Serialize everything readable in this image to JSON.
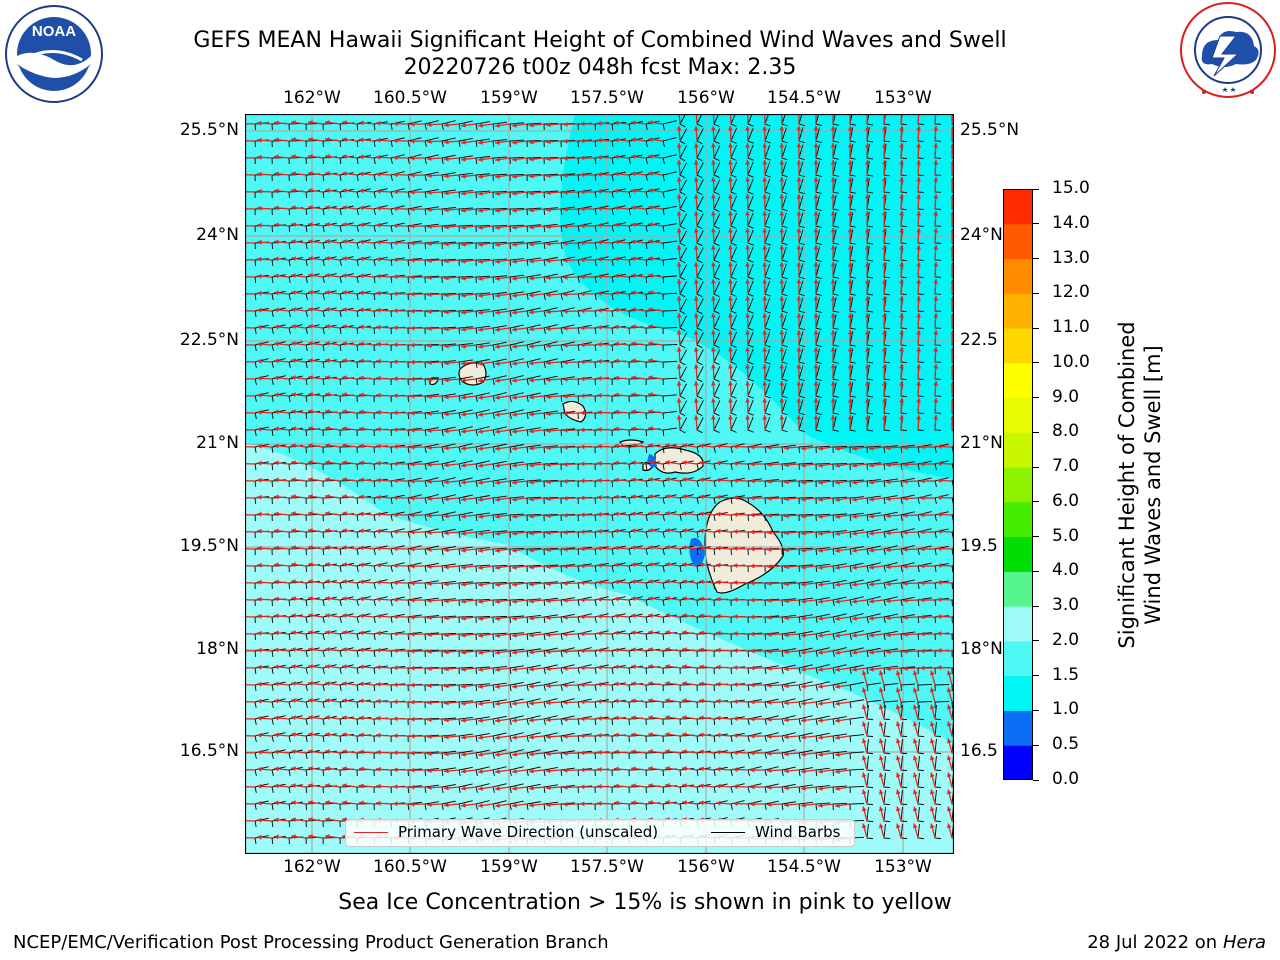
{
  "title": {
    "line1": "GEFS MEAN Hawaii Significant Height of Combined Wind Waves and Swell",
    "line2": "20220726 t00z 048h fcst   Max: 2.35"
  },
  "logos": {
    "left": "NOAA",
    "left_ring_top": "NATIONAL OCEANIC AND ATMOSPHERIC ADMINISTRATION",
    "left_ring_bottom": "U.S. DEPARTMENT OF COMMERCE",
    "right_ring_top": "NATIONAL WEATHER SERVICE"
  },
  "map": {
    "lon_ticks": [
      "162°W",
      "160.5°W",
      "159°W",
      "157.5°W",
      "156°W",
      "154.5°W",
      "153°W"
    ],
    "lat_ticks": [
      "25.5°N",
      "24°N",
      "22.5°N",
      "21°N",
      "19.5°N",
      "18°N",
      "16.5°N"
    ],
    "lat_ticks_right": [
      "25.5°N",
      "24°N",
      "22.5",
      "21°N",
      "19.5",
      "18°N",
      "16.5"
    ],
    "colors": {
      "sea_base": "#4ff7f5",
      "sea_light": "#9ffbf7",
      "sea_dark": "#00f5f5",
      "land": "#f0ecdc"
    }
  },
  "legend": {
    "wave_label": "Primary Wave Direction (unscaled)",
    "barb_label": "Wind Barbs",
    "wave_color": "#e8231e",
    "barb_color": "#000000"
  },
  "colorbar": {
    "title_line1": "Significant Height of Combined",
    "title_line2": "Wind Waves and Swell [m]",
    "ticks": [
      "15.0",
      "14.0",
      "13.0",
      "12.0",
      "11.0",
      "10.0",
      "9.0",
      "8.0",
      "7.0",
      "6.0",
      "5.0",
      "4.0",
      "3.0",
      "2.0",
      "1.5",
      "1.0",
      "0.5",
      "0.0"
    ],
    "colors": [
      "#0000ff",
      "#0a6ff5",
      "#00f5f5",
      "#4ff7f5",
      "#9ffbf7",
      "#55f58f",
      "#00dd00",
      "#44ec00",
      "#8cf200",
      "#c8f700",
      "#e8fb00",
      "#ffff00",
      "#ffd700",
      "#ffb200",
      "#ff8c00",
      "#ff5a00",
      "#ff2a00",
      "#ff0000"
    ]
  },
  "footer": {
    "note": "Sea Ice Concentration > 15% is shown in pink to yellow",
    "left": "NCEP/EMC/Verification Post Processing Product Generation Branch",
    "right_prefix": "28 Jul 2022 on ",
    "right_host": "Hera"
  }
}
